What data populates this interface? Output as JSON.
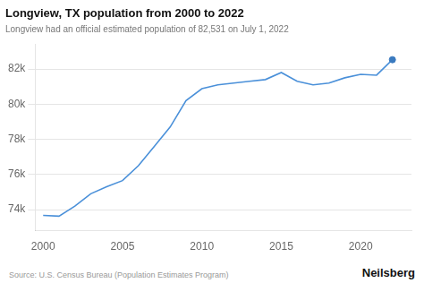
{
  "chart_data": {
    "type": "line",
    "title": "Longview, TX population from 2000 to 2022",
    "subtitle": "Longview had an official estimated population of 82,531 on July 1, 2022",
    "annotations": [
      "Source: U.S. Census Bureau (Population Estimates Program)",
      "Neilsberg"
    ],
    "x": [
      2000,
      2001,
      2002,
      2003,
      2004,
      2005,
      2006,
      2007,
      2008,
      2009,
      2010,
      2011,
      2012,
      2013,
      2014,
      2015,
      2016,
      2017,
      2018,
      2019,
      2020,
      2021,
      2022
    ],
    "series": [
      {
        "type": "line",
        "color": "#4a90d9",
        "values": [
          73674,
          73629,
          74200,
          74900,
          75300,
          75650,
          76500,
          77600,
          78700,
          80200,
          80879,
          81100,
          81200,
          81300,
          81400,
          81800,
          81300,
          81100,
          81200,
          81500,
          81700,
          81650,
          82531
        ]
      },
      {
        "type": "scatter",
        "color": "#3a7abf",
        "values": [
          null,
          null,
          null,
          null,
          null,
          null,
          null,
          null,
          null,
          null,
          null,
          null,
          null,
          null,
          null,
          null,
          null,
          null,
          null,
          null,
          null,
          null,
          82531
        ]
      }
    ],
    "xlim": [
      1999.5,
      2023.2
    ],
    "xticks": [
      2000,
      2005,
      2010,
      2015,
      2020
    ],
    "ylim": [
      72800,
      83400
    ],
    "yticks": [
      {
        "value": 74000,
        "label": "74k"
      },
      {
        "value": 76000,
        "label": "76k"
      },
      {
        "value": 78000,
        "label": "78k"
      },
      {
        "value": 80000,
        "label": "80k"
      },
      {
        "value": 82000,
        "label": "82k"
      }
    ],
    "grid": "y"
  }
}
